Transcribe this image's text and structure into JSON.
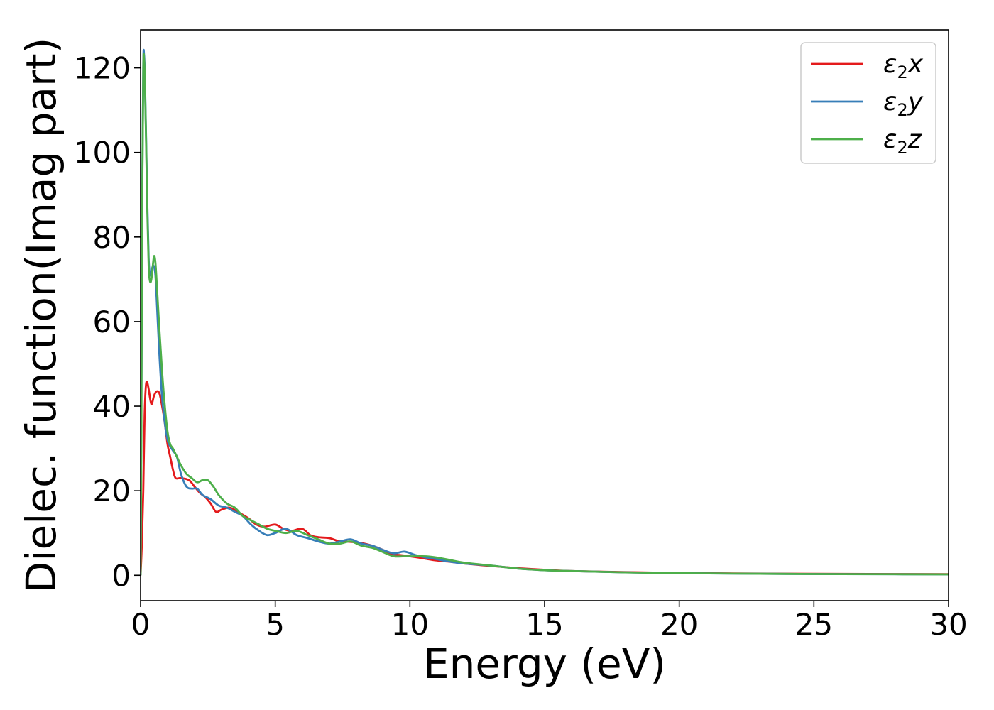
{
  "chart_data": {
    "type": "line",
    "title": "",
    "xlabel": "Energy (eV)",
    "ylabel": "Dielec. function(Imag part)",
    "xlim": [
      0,
      30
    ],
    "ylim": [
      -6,
      129
    ],
    "xticks": [
      0,
      5,
      10,
      15,
      20,
      25,
      30
    ],
    "yticks": [
      0,
      20,
      40,
      60,
      80,
      100,
      120
    ],
    "grid": false,
    "legend_position": "top-right",
    "series": [
      {
        "name": "ε₂x",
        "legend_base": "ε",
        "legend_sub": "2",
        "legend_suffix": "x",
        "color": "#e41a1c",
        "x": [
          0,
          0.05,
          0.1,
          0.15,
          0.2,
          0.25,
          0.3,
          0.4,
          0.5,
          0.6,
          0.7,
          0.8,
          0.9,
          1.0,
          1.1,
          1.2,
          1.3,
          1.5,
          1.8,
          2.0,
          2.2,
          2.4,
          2.6,
          2.8,
          3.0,
          3.3,
          3.6,
          4.0,
          4.3,
          4.6,
          5.0,
          5.3,
          5.6,
          6.0,
          6.3,
          6.6,
          7.0,
          7.3,
          7.6,
          8.0,
          8.3,
          8.6,
          9.0,
          9.3,
          9.6,
          10.0,
          10.5,
          11.0,
          11.5,
          12.0,
          13.0,
          14.0,
          15.0,
          16.0,
          18.0,
          20.0,
          22.0,
          25.0,
          28.0,
          30.0
        ],
        "y": [
          0,
          8,
          20,
          38,
          45,
          45.5,
          44,
          40.5,
          42.5,
          43.5,
          43,
          40,
          36,
          31,
          28,
          25,
          23,
          23,
          22.5,
          21,
          19.5,
          18.5,
          17,
          15,
          15.5,
          16,
          15,
          13.5,
          12,
          11.5,
          12,
          11,
          10.5,
          11,
          9.5,
          9,
          8.8,
          8.2,
          8,
          7.8,
          7.5,
          7,
          6,
          5,
          4.8,
          4.5,
          4,
          3.5,
          3.2,
          2.8,
          2.2,
          1.7,
          1.3,
          1.0,
          0.75,
          0.55,
          0.45,
          0.35,
          0.3,
          0.28
        ]
      },
      {
        "name": "ε₂y",
        "legend_base": "ε",
        "legend_sub": "2",
        "legend_suffix": "y",
        "color": "#377eb8",
        "x": [
          0,
          0.03,
          0.06,
          0.1,
          0.13,
          0.16,
          0.2,
          0.25,
          0.3,
          0.35,
          0.4,
          0.45,
          0.5,
          0.55,
          0.6,
          0.7,
          0.8,
          0.9,
          1.0,
          1.1,
          1.2,
          1.35,
          1.5,
          1.7,
          1.9,
          2.1,
          2.3,
          2.6,
          2.9,
          3.2,
          3.5,
          3.8,
          4.1,
          4.4,
          4.7,
          5.0,
          5.4,
          5.8,
          6.2,
          6.6,
          7.0,
          7.4,
          7.8,
          8.2,
          8.6,
          9.0,
          9.4,
          9.8,
          10.2,
          10.6,
          11.0,
          11.5,
          12.0,
          13.0,
          14.0,
          15.0,
          16.0,
          18.0,
          20.0,
          22.0,
          25.0,
          28.0,
          30.0
        ],
        "y": [
          0,
          40,
          90,
          121,
          123,
          118,
          105,
          88,
          75,
          71,
          72,
          73,
          73,
          71,
          65,
          52,
          42,
          36,
          32,
          30.5,
          29.5,
          28,
          24,
          21,
          20.5,
          20.5,
          19,
          18,
          16.5,
          16,
          15,
          14,
          12,
          10.5,
          9.5,
          10,
          11,
          9.5,
          8.8,
          8,
          7.5,
          8,
          8.5,
          7.5,
          7,
          6,
          5.2,
          5.6,
          4.8,
          4.2,
          3.8,
          3.2,
          2.8,
          2.3,
          1.6,
          1.2,
          1.0,
          0.7,
          0.5,
          0.4,
          0.3,
          0.25,
          0.22
        ]
      },
      {
        "name": "ε₂z",
        "legend_base": "ε",
        "legend_sub": "2",
        "legend_suffix": "z",
        "color": "#4daf4a",
        "x": [
          0,
          0.03,
          0.06,
          0.1,
          0.13,
          0.16,
          0.2,
          0.25,
          0.3,
          0.35,
          0.4,
          0.45,
          0.5,
          0.55,
          0.6,
          0.7,
          0.8,
          0.9,
          1.0,
          1.1,
          1.2,
          1.35,
          1.5,
          1.7,
          1.9,
          2.1,
          2.3,
          2.5,
          2.7,
          2.9,
          3.2,
          3.5,
          3.8,
          4.1,
          4.4,
          4.7,
          5.0,
          5.4,
          5.8,
          6.2,
          6.6,
          7.0,
          7.4,
          7.8,
          8.2,
          8.6,
          9.0,
          9.4,
          9.8,
          10.2,
          10.6,
          11.0,
          11.5,
          12.0,
          13.0,
          14.0,
          15.0,
          16.0,
          18.0,
          20.0,
          22.0,
          25.0,
          28.0,
          30.0
        ],
        "y": [
          0,
          38,
          88,
          120,
          122,
          117,
          104,
          86,
          73,
          69.5,
          70,
          73,
          75.5,
          74,
          69,
          58,
          48,
          40,
          34,
          31,
          30,
          28,
          26,
          24,
          23,
          22,
          22.5,
          22.5,
          21,
          19,
          17,
          16,
          14,
          13,
          12,
          11,
          10.5,
          10,
          10.5,
          9.5,
          8.5,
          7.5,
          7.5,
          8,
          7,
          6.5,
          5.5,
          4.5,
          4.5,
          4.5,
          4.5,
          4.2,
          3.6,
          3.0,
          2.3,
          1.6,
          1.2,
          1.0,
          0.7,
          0.5,
          0.4,
          0.3,
          0.25,
          0.22
        ]
      }
    ]
  }
}
